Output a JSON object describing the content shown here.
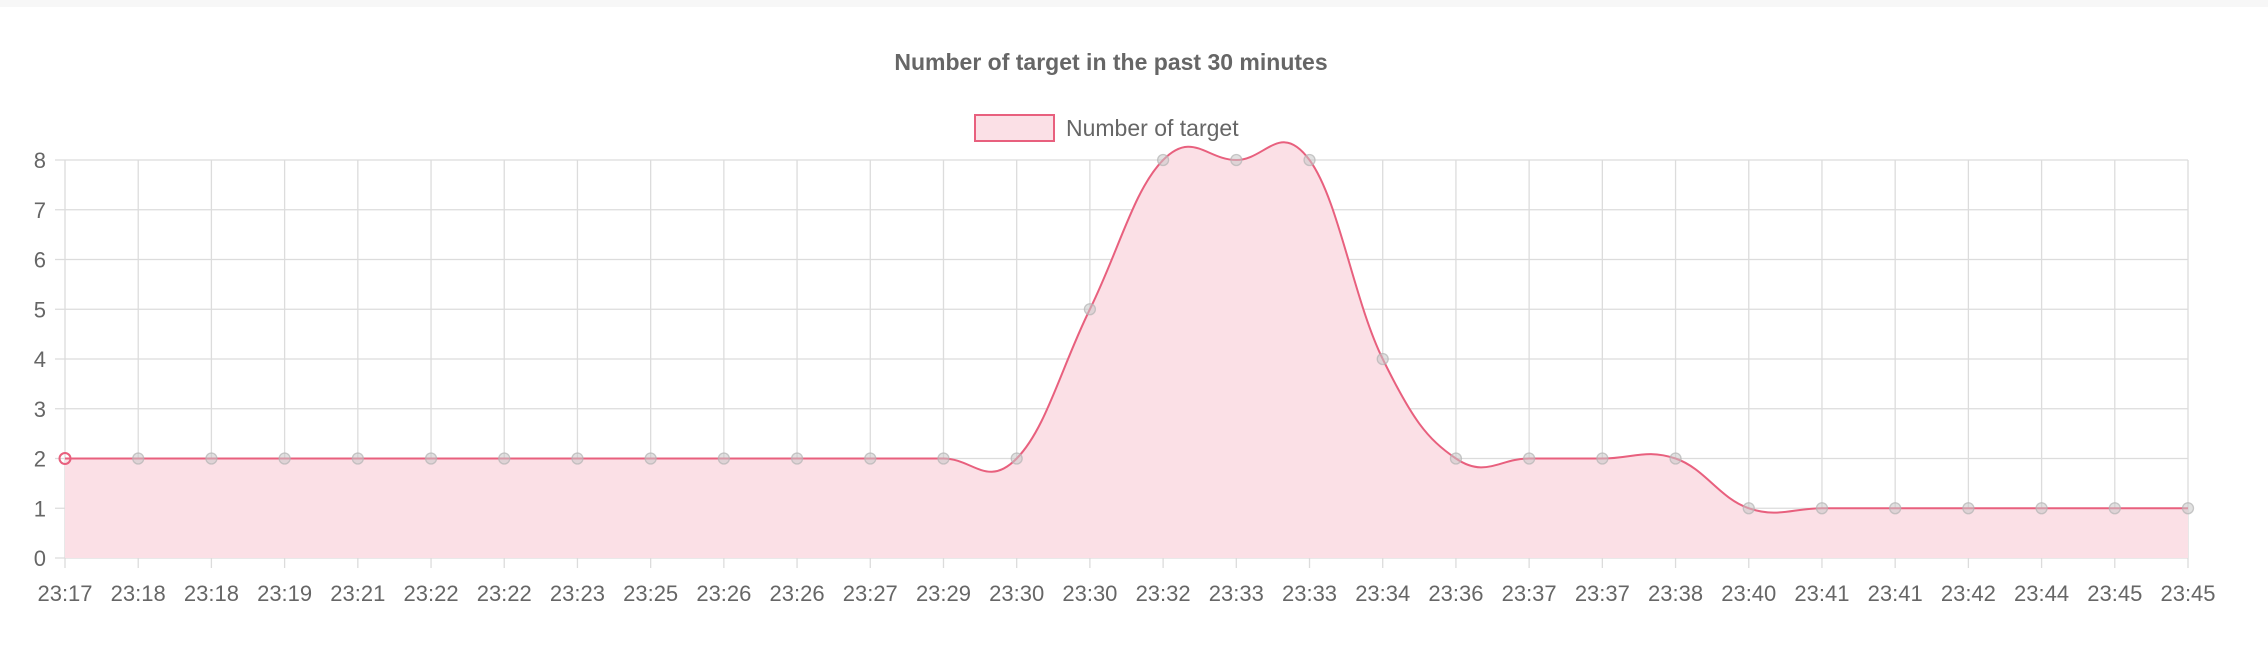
{
  "chart_data": {
    "type": "line",
    "title": "Number of target in the past 30 minutes",
    "legend": {
      "position": "top",
      "label": "Number of target"
    },
    "colors": {
      "line": "#e8607e",
      "fill": "#fbe0e6",
      "grid": "#dcdcdc",
      "text": "#666666"
    },
    "categories": [
      "23:17",
      "23:18",
      "23:18",
      "23:19",
      "23:21",
      "23:22",
      "23:22",
      "23:23",
      "23:25",
      "23:26",
      "23:26",
      "23:27",
      "23:29",
      "23:30",
      "23:30",
      "23:32",
      "23:33",
      "23:33",
      "23:34",
      "23:36",
      "23:37",
      "23:37",
      "23:38",
      "23:40",
      "23:41",
      "23:41",
      "23:42",
      "23:44",
      "23:45",
      "23:45"
    ],
    "series": [
      {
        "name": "Number of target",
        "values": [
          2,
          2,
          2,
          2,
          2,
          2,
          2,
          2,
          2,
          2,
          2,
          2,
          2,
          2,
          5,
          8,
          8,
          8,
          4,
          2,
          2,
          2,
          2,
          1,
          1,
          1,
          1,
          1,
          1,
          1
        ]
      }
    ],
    "ylim": [
      0,
      8
    ],
    "yticks": [
      0,
      1,
      2,
      3,
      4,
      5,
      6,
      7,
      8
    ],
    "grid": true,
    "fill": true,
    "smooth": true
  }
}
